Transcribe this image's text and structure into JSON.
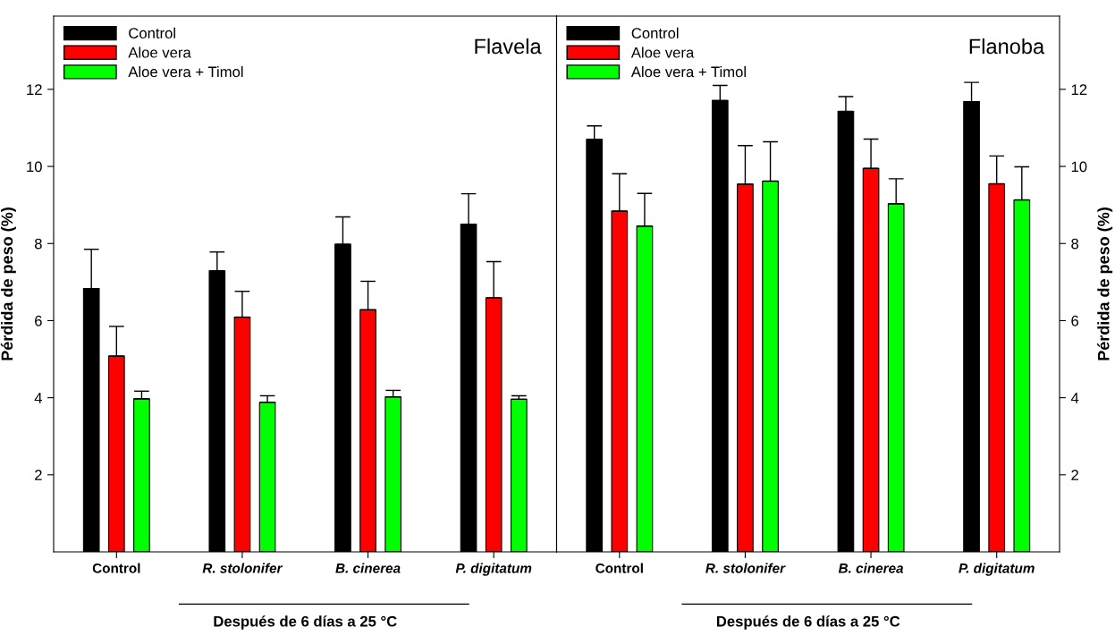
{
  "chart_data": [
    {
      "type": "bar",
      "title": "Flavela",
      "ylabel": "Pérdida de peso (%)",
      "xlabel": "Después de 6 días a 25 °C",
      "categories": [
        "Control",
        "R. stolonifer",
        "B. cinerea",
        "P. digitatum"
      ],
      "series": [
        {
          "name": "Control",
          "color": "#000000",
          "values": [
            6.83,
            7.29,
            7.98,
            8.5
          ],
          "errors": [
            [
              6.83,
              7.85
            ],
            [
              7.29,
              7.78
            ],
            [
              7.98,
              8.69
            ],
            [
              8.5,
              9.29
            ]
          ]
        },
        {
          "name": "Aloe vera",
          "color": "#ff0000",
          "values": [
            5.08,
            6.09,
            6.28,
            6.59
          ],
          "errors": [
            [
              5.08,
              5.85
            ],
            [
              6.09,
              6.76
            ],
            [
              6.28,
              7.02
            ],
            [
              6.59,
              7.53
            ]
          ]
        },
        {
          "name": "Aloe vera + Timol",
          "color": "#00ff00",
          "values": [
            3.97,
            3.88,
            4.02,
            3.96
          ],
          "errors": [
            [
              3.97,
              4.17
            ],
            [
              3.88,
              4.05
            ],
            [
              4.02,
              4.19
            ],
            [
              3.96,
              4.05
            ]
          ]
        }
      ],
      "ylim": [
        0,
        13.9
      ],
      "yticks": [
        2,
        4,
        6,
        8,
        10,
        12
      ],
      "legend": "top left",
      "grid": false
    },
    {
      "type": "bar",
      "title": "Flanoba",
      "ylabel": "Pérdida de peso (%)",
      "xlabel": "Después de 6 días a 25 °C",
      "categories": [
        "Control",
        "R. stolonifer",
        "B. cinerea",
        "P. digitatum"
      ],
      "series": [
        {
          "name": "Control",
          "color": "#000000",
          "values": [
            10.7,
            11.71,
            11.43,
            11.68
          ],
          "errors": [
            [
              10.7,
              11.05
            ],
            [
              11.71,
              12.1
            ],
            [
              11.43,
              11.81
            ],
            [
              11.68,
              12.18
            ]
          ]
        },
        {
          "name": "Aloe vera",
          "color": "#ff0000",
          "values": [
            8.84,
            9.54,
            9.95,
            9.55
          ],
          "errors": [
            [
              8.84,
              9.81
            ],
            [
              9.54,
              10.54
            ],
            [
              9.95,
              10.71
            ],
            [
              9.55,
              10.27
            ]
          ]
        },
        {
          "name": "Aloe vera + Timol",
          "color": "#00ff00",
          "values": [
            8.45,
            9.62,
            9.03,
            9.13
          ],
          "errors": [
            [
              8.45,
              9.3
            ],
            [
              9.62,
              10.64
            ],
            [
              9.03,
              9.68
            ],
            [
              9.13,
              9.99
            ]
          ]
        }
      ],
      "ylim": [
        0,
        13.9
      ],
      "yticks": [
        2,
        4,
        6,
        8,
        10,
        12
      ],
      "legend": "top left",
      "grid": false
    }
  ]
}
